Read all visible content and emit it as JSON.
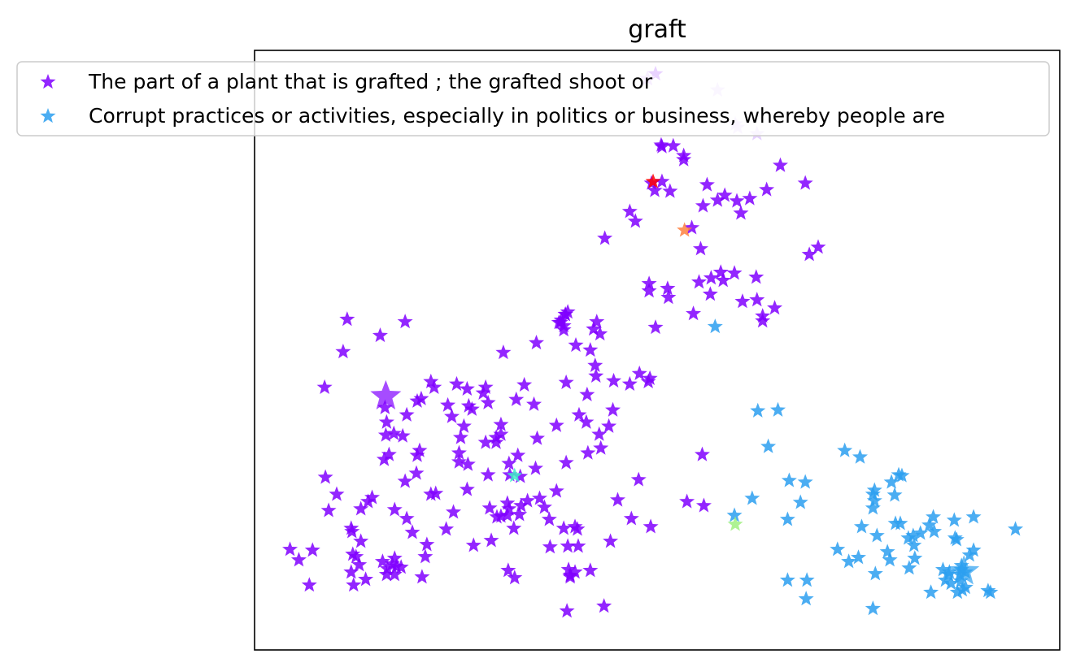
{
  "chart_data": {
    "type": "scatter",
    "title": "graft",
    "xlabel": "",
    "ylabel": "",
    "xlim": [
      0,
      1000
    ],
    "ylim": [
      0,
      740
    ],
    "grid": false,
    "ticks_visible": false,
    "marker": "star",
    "legend_placement": "top-left",
    "series": [
      {
        "name": "The part of a plant that is grafted ; the grafted shoot or",
        "color": "#8000ff",
        "points": [
          [
            488,
            705
          ],
          [
            498,
            711
          ],
          [
            506,
            621
          ],
          [
            493,
            576
          ],
          [
            506,
            578
          ],
          [
            505,
            623
          ],
          [
            520,
            622
          ],
          [
            533,
            605
          ],
          [
            533,
            610
          ],
          [
            497,
            567
          ],
          [
            543,
            521
          ],
          [
            562,
            574
          ],
          [
            516,
            566
          ],
          [
            584,
            561
          ],
          [
            575,
            555
          ],
          [
            615,
            557
          ],
          [
            599,
            554
          ],
          [
            604,
            539
          ],
          [
            684,
            576
          ],
          [
            689,
            488
          ],
          [
            636,
            568
          ],
          [
            653,
            598
          ],
          [
            557,
            548
          ],
          [
            466,
            541
          ],
          [
            473,
            529
          ],
          [
            435,
            508
          ],
          [
            490,
            452
          ],
          [
            545,
            415
          ],
          [
            513,
            446
          ],
          [
            490,
            443
          ],
          [
            446,
            332
          ],
          [
            478,
            341
          ],
          [
            489,
            331
          ],
          [
            491,
            335
          ],
          [
            466,
            328
          ],
          [
            498,
            398
          ],
          [
            582,
            456
          ],
          [
            566,
            439
          ],
          [
            514,
            435
          ],
          [
            554,
            495
          ],
          [
            624,
            432
          ],
          [
            596,
            465
          ],
          [
            606,
            430
          ],
          [
            631,
            412
          ],
          [
            631,
            406
          ],
          [
            623,
            460
          ],
          [
            646,
            422
          ],
          [
            700,
            497
          ],
          [
            579,
            466
          ],
          [
            567,
            459
          ],
          [
            552,
            454
          ],
          [
            386,
            414
          ],
          [
            378,
            404
          ],
          [
            386,
            414
          ],
          [
            389,
            417
          ],
          [
            380,
            404
          ],
          [
            381,
            407
          ],
          [
            384,
            395
          ],
          [
            384,
            400
          ],
          [
            425,
            405
          ],
          [
            421,
            396
          ],
          [
            417,
            370
          ],
          [
            424,
            338
          ],
          [
            423,
            351
          ],
          [
            335,
            327
          ],
          [
            350,
            379
          ],
          [
            325,
            309
          ],
          [
            399,
            376
          ],
          [
            429,
            390
          ],
          [
            300,
            256
          ],
          [
            254,
            243
          ],
          [
            251,
            328
          ],
          [
            245,
            288
          ],
          [
            264,
            322
          ],
          [
            270,
            297
          ],
          [
            287,
            324
          ],
          [
            202,
            307
          ],
          [
            309,
            367
          ],
          [
            266,
            301
          ],
          [
            300,
            262
          ],
          [
            284,
            317
          ],
          [
            240,
            302
          ],
          [
            306,
            266
          ],
          [
            290,
            305
          ],
          [
            306,
            278
          ],
          [
            316,
            230
          ],
          [
            317,
            216
          ],
          [
            314,
            181
          ],
          [
            331,
            178
          ],
          [
            339,
            184
          ],
          [
            354,
            187
          ],
          [
            360,
            176
          ],
          [
            384,
            150
          ],
          [
            390,
            99
          ],
          [
            392,
            90
          ],
          [
            417,
            98
          ],
          [
            323,
            89
          ],
          [
            315,
            98
          ],
          [
            301,
            164
          ],
          [
            322,
            150
          ],
          [
            367,
            127
          ],
          [
            398,
            96
          ],
          [
            442,
            134
          ],
          [
            414,
            243
          ],
          [
            413,
            315
          ],
          [
            387,
            330
          ],
          [
            387,
            231
          ],
          [
            428,
            266
          ],
          [
            430,
            249
          ],
          [
            477,
            210
          ],
          [
            401,
            149
          ],
          [
            292,
            175
          ],
          [
            264,
            198
          ],
          [
            247,
            170
          ],
          [
            219,
            192
          ],
          [
            260,
            276
          ],
          [
            256,
            262
          ],
          [
            265,
            229
          ],
          [
            287,
            256
          ],
          [
            254,
            232
          ],
          [
            196,
            145
          ],
          [
            225,
            193
          ],
          [
            187,
            208
          ],
          [
            161,
            235
          ],
          [
            167,
            241
          ],
          [
            173,
            267
          ],
          [
            184,
            264
          ],
          [
            202,
            240
          ],
          [
            201,
            218
          ],
          [
            205,
            246
          ],
          [
            163,
            265
          ],
          [
            164,
            281
          ],
          [
            189,
            290
          ],
          [
            162,
            299
          ],
          [
            219,
            331
          ],
          [
            223,
            324
          ],
          [
            207,
            310
          ],
          [
            187,
            405
          ],
          [
            156,
            388
          ],
          [
            115,
            408
          ],
          [
            110,
            368
          ],
          [
            87,
            324
          ],
          [
            88,
            213
          ],
          [
            92,
            172
          ],
          [
            102,
            192
          ],
          [
            120,
            150
          ],
          [
            132,
            174
          ],
          [
            146,
            188
          ],
          [
            121,
            146
          ],
          [
            132,
            134
          ],
          [
            141,
            183
          ],
          [
            189,
            162
          ],
          [
            122,
            118
          ],
          [
            120,
            96
          ],
          [
            72,
            123
          ],
          [
            55,
            111
          ],
          [
            44,
            124
          ],
          [
            68,
            80
          ],
          [
            123,
            80
          ],
          [
            130,
            105
          ],
          [
            126,
            115
          ],
          [
            138,
            87
          ],
          [
            164,
            93
          ],
          [
            171,
            106
          ],
          [
            174,
            113
          ],
          [
            176,
            103
          ],
          [
            182,
            102
          ],
          [
            174,
            93
          ],
          [
            165,
            100
          ],
          [
            159,
            109
          ],
          [
            174,
            173
          ],
          [
            214,
            130
          ],
          [
            212,
            115
          ],
          [
            208,
            90
          ],
          [
            238,
            149
          ],
          [
            294,
            135
          ],
          [
            314,
            166
          ],
          [
            306,
            165
          ],
          [
            375,
            196
          ],
          [
            389,
            128
          ],
          [
            398,
            152
          ],
          [
            468,
            162
          ],
          [
            451,
            185
          ],
          [
            556,
            241
          ],
          [
            537,
            183
          ],
          [
            558,
            178
          ],
          [
            492,
            152
          ],
          [
            402,
            128
          ],
          [
            392,
            92
          ],
          [
            434,
            54
          ],
          [
            388,
            48
          ],
          [
            272,
            129
          ],
          [
            316,
            174
          ],
          [
            330,
            214
          ],
          [
            329,
            167
          ],
          [
            366,
            161
          ],
          [
            290,
            216
          ],
          [
            327,
            240
          ],
          [
            349,
            224
          ],
          [
            351,
            261
          ],
          [
            347,
            303
          ],
          [
            375,
            277
          ],
          [
            440,
            276
          ],
          [
            412,
            281
          ],
          [
            403,
            290
          ],
          [
            445,
            296
          ]
        ]
      },
      {
        "name": "Corrupt practices or activities, especially in politics or business, whereby people are",
        "color": "#2c9ff0",
        "points": [
          [
            572,
            399
          ],
          [
            625,
            295
          ],
          [
            650,
            296
          ],
          [
            638,
            251
          ],
          [
            733,
            246
          ],
          [
            752,
            238
          ],
          [
            664,
            209
          ],
          [
            684,
            207
          ],
          [
            618,
            187
          ],
          [
            678,
            182
          ],
          [
            596,
            166
          ],
          [
            662,
            161
          ],
          [
            770,
            197
          ],
          [
            791,
            207
          ],
          [
            800,
            216
          ],
          [
            804,
            215
          ],
          [
            770,
            184
          ],
          [
            768,
            192
          ],
          [
            768,
            175
          ],
          [
            795,
            191
          ],
          [
            754,
            152
          ],
          [
            773,
            141
          ],
          [
            796,
            156
          ],
          [
            786,
            121
          ],
          [
            789,
            111
          ],
          [
            812,
            138
          ],
          [
            838,
            154
          ],
          [
            844,
            146
          ],
          [
            818,
            141
          ],
          [
            843,
            164
          ],
          [
            872,
            136
          ],
          [
            893,
            164
          ],
          [
            869,
            160
          ],
          [
            870,
            138
          ],
          [
            893,
            123
          ],
          [
            878,
            104
          ],
          [
            878,
            99
          ],
          [
            883,
            96
          ],
          [
            877,
            85
          ],
          [
            873,
            71
          ],
          [
            879,
            74
          ],
          [
            883,
            77
          ],
          [
            865,
            82
          ],
          [
            862,
            93
          ],
          [
            840,
            71
          ],
          [
            911,
            73
          ],
          [
            945,
            149
          ],
          [
            876,
            93
          ],
          [
            858,
            86
          ],
          [
            863,
            96
          ],
          [
            855,
            99
          ],
          [
            768,
            51
          ],
          [
            686,
            86
          ],
          [
            662,
            86
          ],
          [
            685,
            63
          ],
          [
            738,
            109
          ],
          [
            750,
            114
          ],
          [
            724,
            124
          ],
          [
            771,
            94
          ],
          [
            802,
            156
          ],
          [
            827,
            144
          ],
          [
            819,
            129
          ],
          [
            820,
            113
          ],
          [
            888,
            117
          ],
          [
            813,
            101
          ],
          [
            914,
            71
          ]
        ]
      }
    ],
    "highlighted_points": [
      {
        "x": 495,
        "y": 578,
        "color": "#ff0000"
      },
      {
        "x": 534,
        "y": 518,
        "color": "#ff8040"
      },
      {
        "x": 323,
        "y": 215,
        "color": "#40f0c8"
      },
      {
        "x": 597,
        "y": 155,
        "color": "#a0f080"
      },
      {
        "x": 575,
        "y": 691,
        "color": "#e0c8ff"
      },
      {
        "x": 600,
        "y": 645,
        "color": "#e0c8ff"
      },
      {
        "x": 624,
        "y": 637,
        "color": "#e0c8ff"
      },
      {
        "x": 597,
        "y": 649,
        "color": "#e0c8ff"
      },
      {
        "x": 488,
        "y": 705,
        "color": "#e0c8ff"
      }
    ],
    "emphasized_points": [
      {
        "x": 163,
        "y": 313,
        "color": "#8000ff"
      },
      {
        "x": 881,
        "y": 97,
        "color": "#2c9ff0"
      }
    ]
  }
}
